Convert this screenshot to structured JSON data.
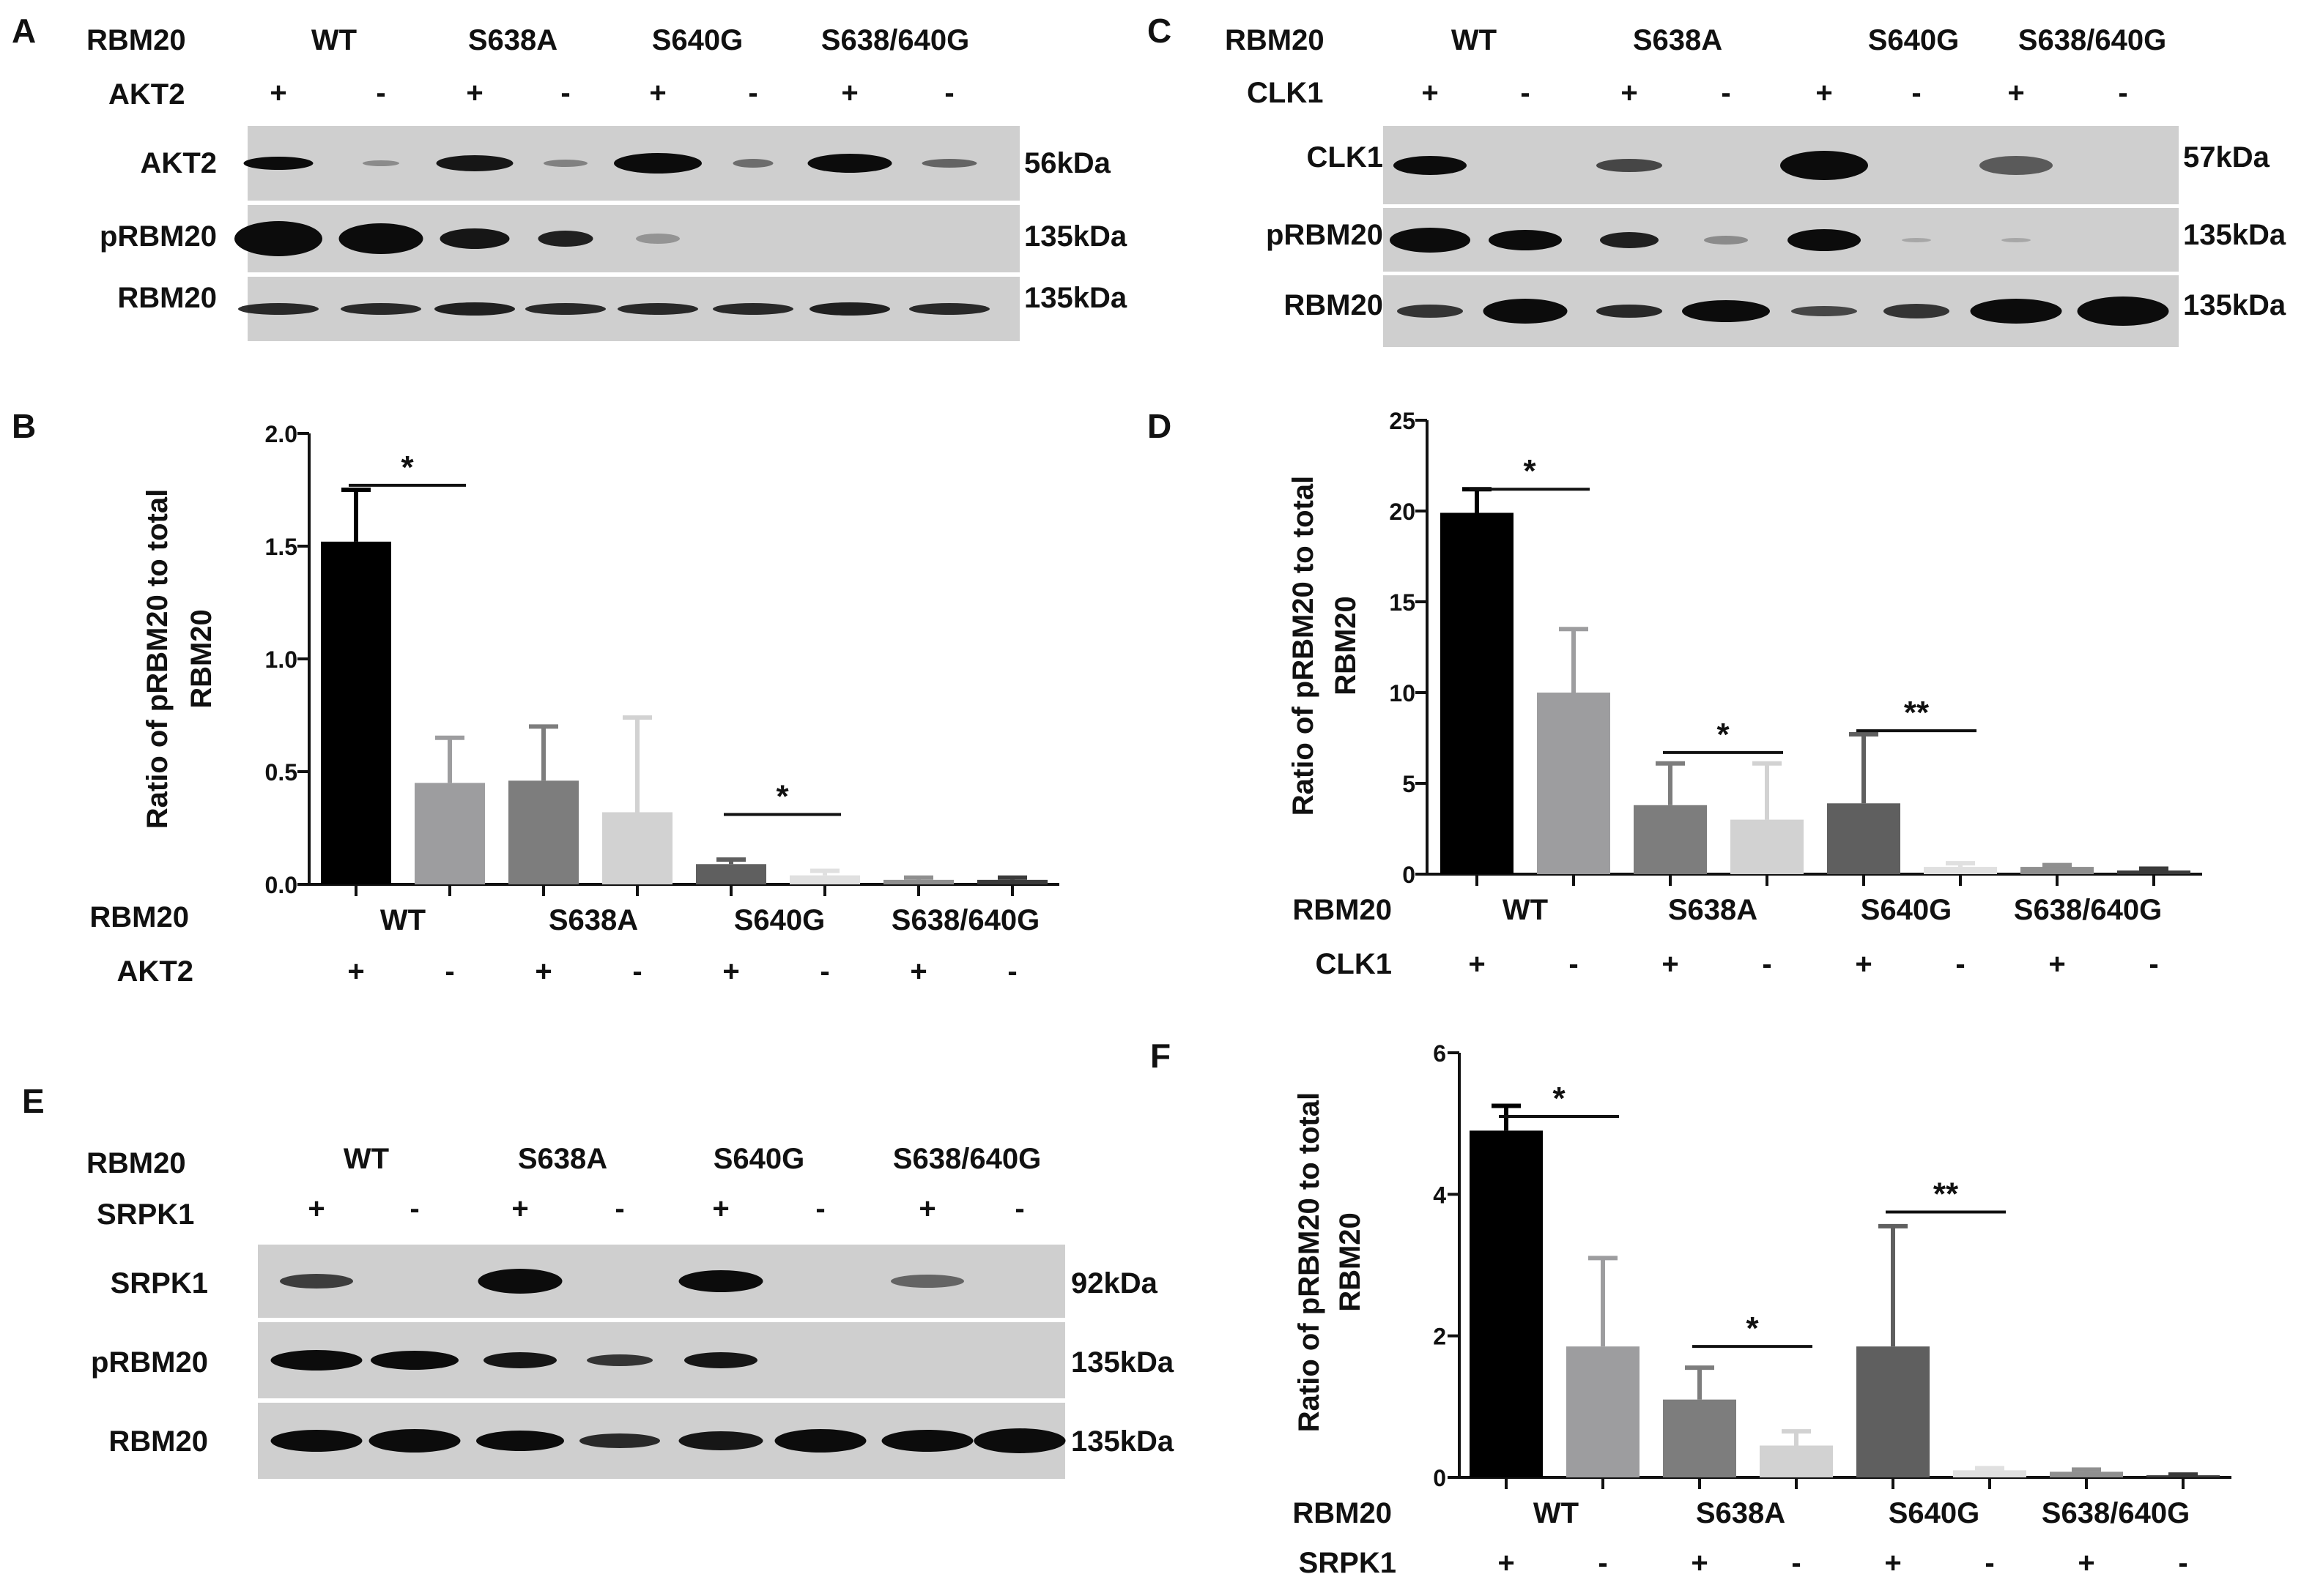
{
  "figure": {
    "panels": {
      "A": {
        "letter": "A",
        "header_row_label": "RBM20",
        "kinase_row_label": "AKT2",
        "groups": [
          "WT",
          "S638A",
          "S640G",
          "S638/640G"
        ],
        "signs": [
          "+",
          "-",
          "+",
          "-",
          "+",
          "-",
          "+",
          "-"
        ],
        "blots": [
          {
            "label": "AKT2",
            "size": "56kDa"
          },
          {
            "label": "pRBM20",
            "size": "135kDa"
          },
          {
            "label": "RBM20",
            "size": "135kDa"
          }
        ]
      },
      "C": {
        "letter": "C",
        "header_row_label": "RBM20",
        "kinase_row_label": "CLK1",
        "groups": [
          "WT",
          "S638A",
          "S640G",
          "S638/640G"
        ],
        "signs": [
          "+",
          "-",
          "+",
          "-",
          "+",
          "-",
          "+",
          "-"
        ],
        "blots": [
          {
            "label": "CLK1",
            "size": "57kDa"
          },
          {
            "label": "pRBM20",
            "size": "135kDa"
          },
          {
            "label": "RBM20",
            "size": "135kDa"
          }
        ]
      },
      "E": {
        "letter": "E",
        "header_row_label": "RBM20",
        "kinase_row_label": "SRPK1",
        "groups": [
          "WT",
          "S638A",
          "S640G",
          "S638/640G"
        ],
        "signs": [
          "+",
          "-",
          "+",
          "-",
          "+",
          "-",
          "+",
          "-"
        ],
        "blots": [
          {
            "label": "SRPK1",
            "size": "92kDa"
          },
          {
            "label": "pRBM20",
            "size": "135kDa"
          },
          {
            "label": "RBM20",
            "size": "135kDa"
          }
        ]
      },
      "B": {
        "letter": "B",
        "row1_label": "RBM20",
        "row2_label": "AKT2",
        "groups": [
          "WT",
          "S638A",
          "S640G",
          "S638/640G"
        ],
        "signs": [
          "+",
          "-",
          "+",
          "-",
          "+",
          "-",
          "+",
          "-"
        ]
      },
      "D": {
        "letter": "D",
        "row1_label": "RBM20",
        "row2_label": "CLK1",
        "groups": [
          "WT",
          "S638A",
          "S640G",
          "S638/640G"
        ],
        "signs": [
          "+",
          "-",
          "+",
          "-",
          "+",
          "-",
          "+",
          "-"
        ]
      },
      "F": {
        "letter": "F",
        "row1_label": "RBM20",
        "row2_label": "SRPK1",
        "groups": [
          "WT",
          "S638A",
          "S640G",
          "S638/640G"
        ],
        "signs": [
          "+",
          "-",
          "+",
          "-",
          "+",
          "-",
          "+",
          "-"
        ]
      }
    },
    "colors": {
      "bar_fills": [
        "#000000",
        "#9d9d9f",
        "#7d7d7d",
        "#d2d2d2",
        "#5f5f5f",
        "#e0e0e0",
        "#8f8f8f",
        "#3a3a3a"
      ],
      "blot_bg": "#cfcfcf",
      "band": "#0c0c0c"
    }
  },
  "chart_data": [
    {
      "panel": "B",
      "type": "bar",
      "ylabel_lines": [
        "Ratio of pRBM20 to total",
        "RBM20"
      ],
      "ylim": [
        0,
        2.0
      ],
      "ytick_labels": [
        "0.0",
        "0.5",
        "1.0",
        "1.5",
        "2.0"
      ],
      "ytick_values": [
        0,
        0.5,
        1.0,
        1.5,
        2.0
      ],
      "values": [
        1.52,
        0.45,
        0.46,
        0.32,
        0.09,
        0.04,
        0.02,
        0.02
      ],
      "errors": [
        0.23,
        0.2,
        0.24,
        0.42,
        0.02,
        0.02,
        0.01,
        0.01
      ],
      "significance": [
        {
          "from": 0,
          "to": 1,
          "label": "*",
          "y": 1.77
        },
        {
          "from": 4,
          "to": 5,
          "label": "*",
          "y": 0.31
        }
      ]
    },
    {
      "panel": "D",
      "type": "bar",
      "ylabel_lines": [
        "Ratio of pRBM20 to total",
        "RBM20"
      ],
      "ylim": [
        0,
        25
      ],
      "ytick_labels": [
        "0",
        "5",
        "10",
        "15",
        "20",
        "25"
      ],
      "ytick_values": [
        0,
        5,
        10,
        15,
        20,
        25
      ],
      "values": [
        19.9,
        10.0,
        3.8,
        3.0,
        3.9,
        0.4,
        0.4,
        0.2
      ],
      "errors": [
        1.3,
        3.5,
        2.3,
        3.1,
        3.8,
        0.2,
        0.1,
        0.1
      ],
      "significance": [
        {
          "from": 0,
          "to": 1,
          "label": "*",
          "y": 21.2
        },
        {
          "from": 2,
          "to": 3,
          "label": "*",
          "y": 6.7
        },
        {
          "from": 4,
          "to": 5,
          "label": "**",
          "y": 7.9
        }
      ]
    },
    {
      "panel": "F",
      "type": "bar",
      "ylabel_lines": [
        "Ratio of pRBM20 to total",
        "RBM20"
      ],
      "ylim": [
        0,
        6
      ],
      "ytick_labels": [
        "0",
        "2",
        "4",
        "6"
      ],
      "ytick_values": [
        0,
        2,
        4,
        6
      ],
      "values": [
        4.9,
        1.85,
        1.1,
        0.45,
        1.85,
        0.1,
        0.08,
        0.03
      ],
      "errors": [
        0.35,
        1.25,
        0.45,
        0.2,
        1.7,
        0.03,
        0.03,
        0.01
      ],
      "significance": [
        {
          "from": 0,
          "to": 1,
          "label": "*",
          "y": 5.1
        },
        {
          "from": 2,
          "to": 3,
          "label": "*",
          "y": 1.85
        },
        {
          "from": 4,
          "to": 5,
          "label": "**",
          "y": 3.75
        }
      ]
    }
  ]
}
